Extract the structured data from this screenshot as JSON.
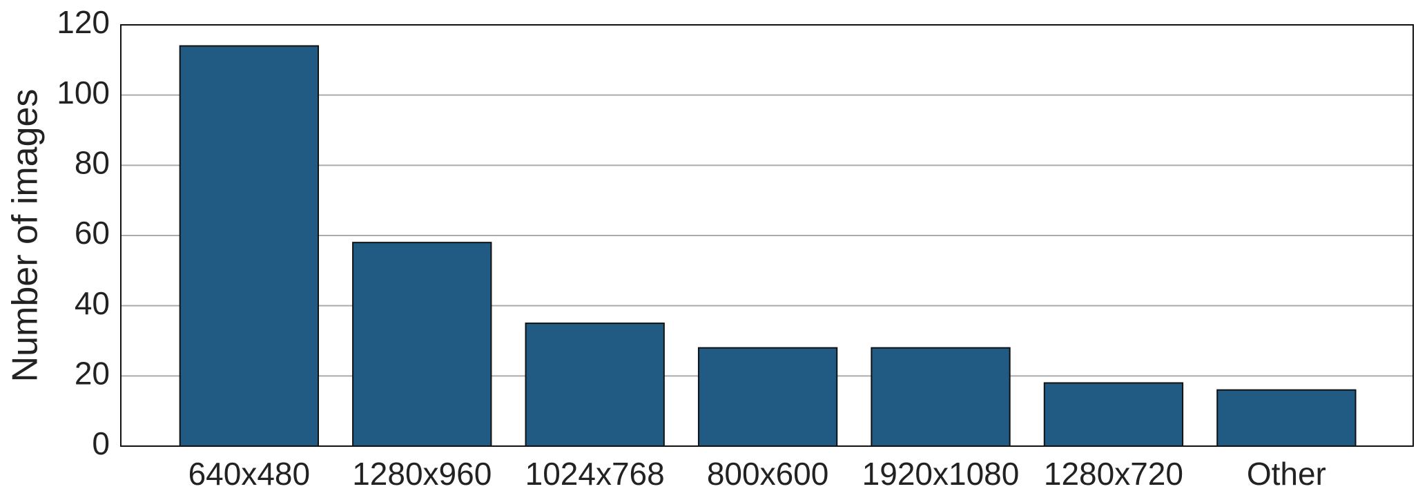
{
  "chart_data": {
    "type": "bar",
    "y_label": "Number of images",
    "categories": [
      "640x480",
      "1280x960",
      "1024x768",
      "800x600",
      "1920x1080",
      "1280x720",
      "Other"
    ],
    "values": [
      114,
      58,
      35,
      28,
      28,
      18,
      16
    ],
    "color": "#215a82",
    "ylim": [
      0,
      120
    ],
    "yticks": [
      0,
      20,
      40,
      60,
      80,
      100,
      120
    ],
    "grid": true
  }
}
